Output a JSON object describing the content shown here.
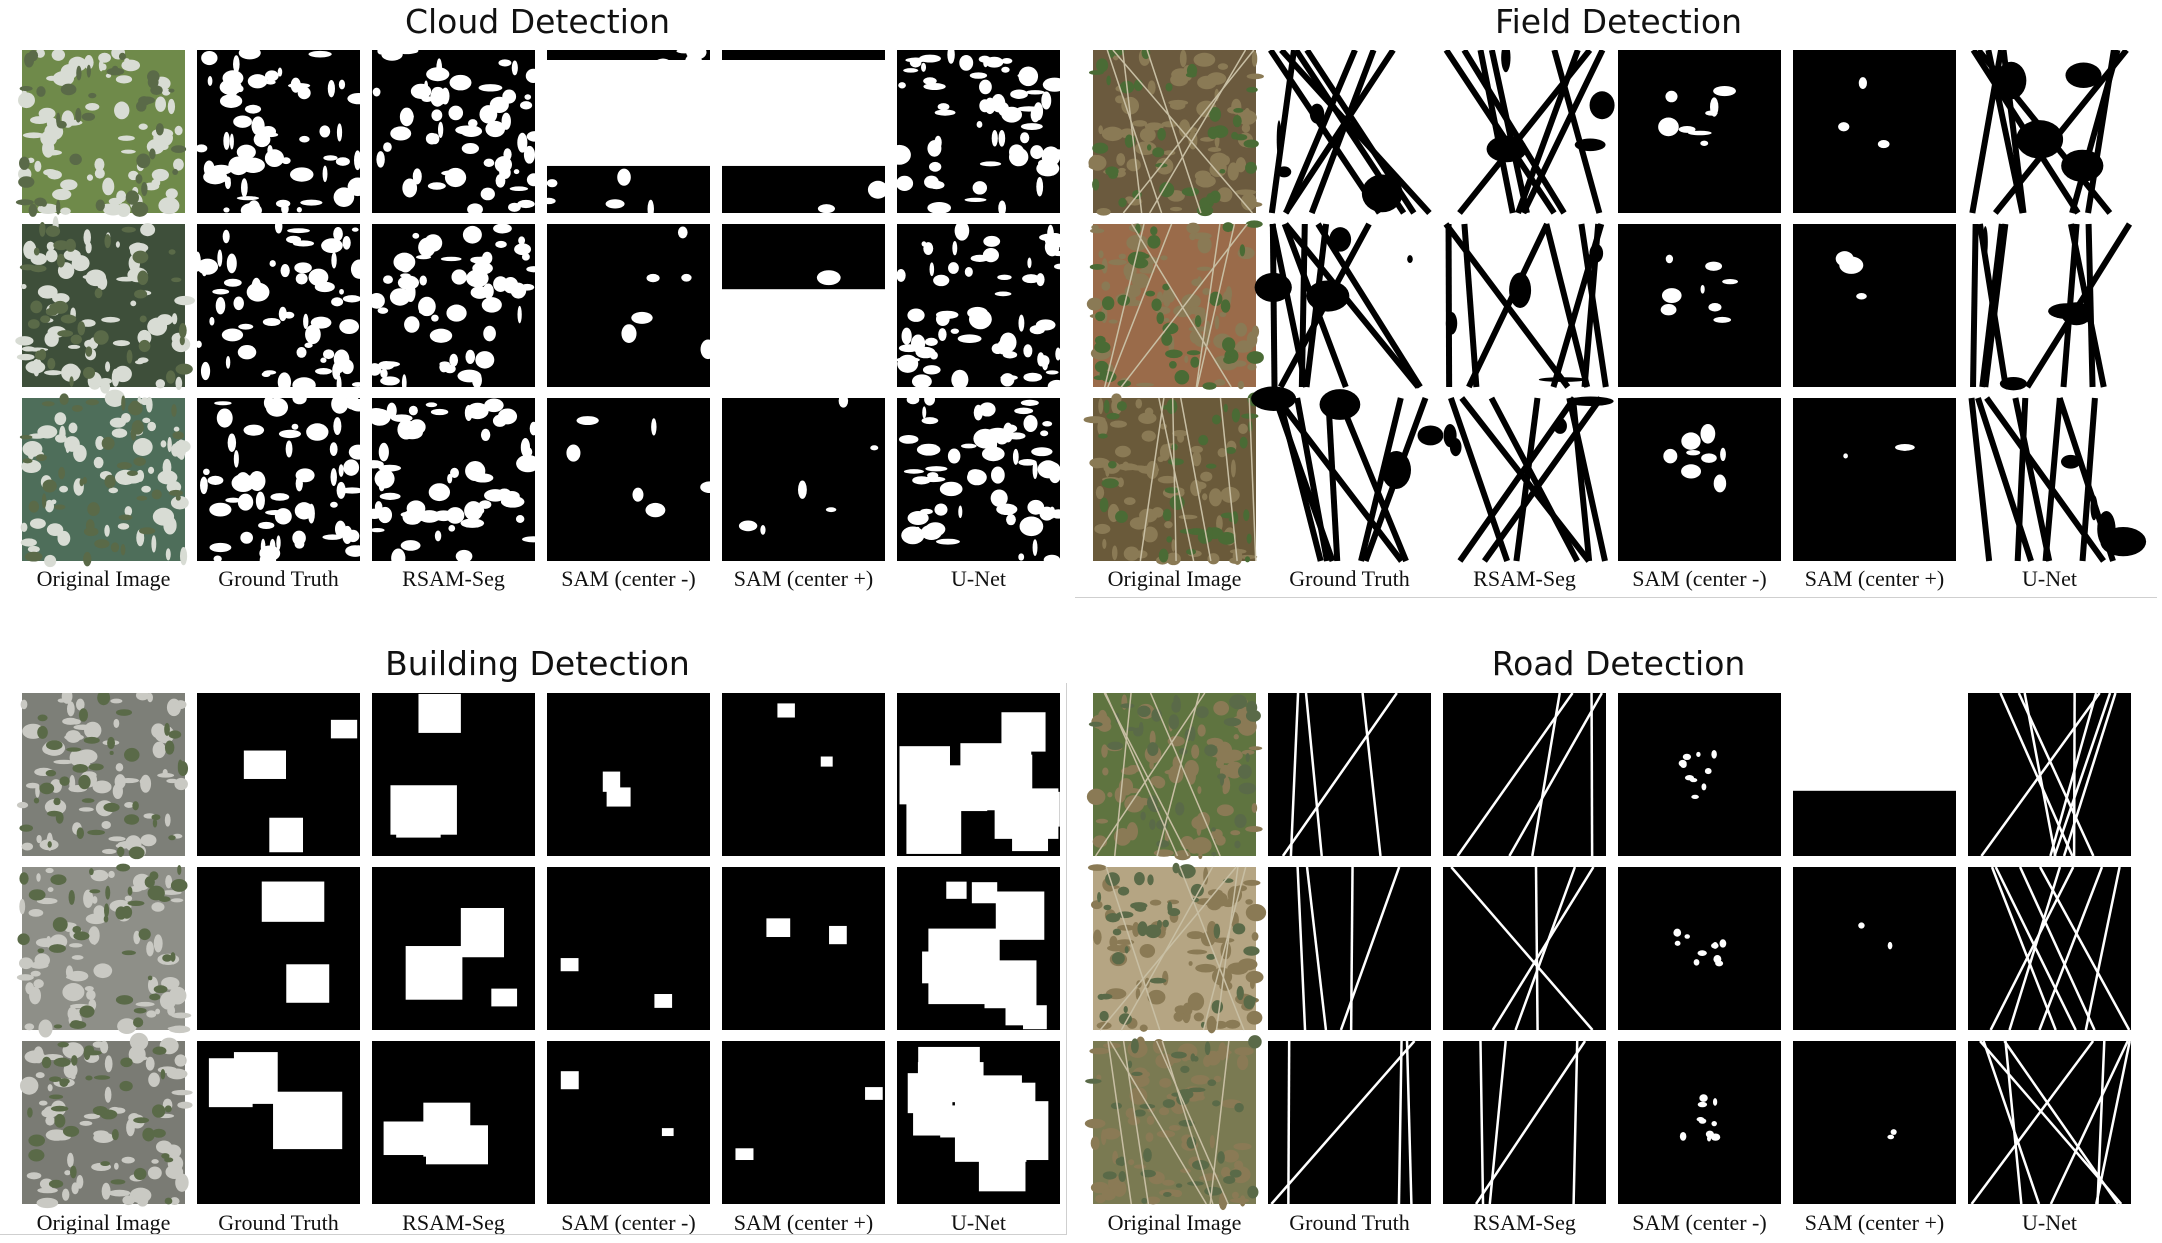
{
  "figure": {
    "panels": [
      {
        "id": "cloud",
        "title": "Cloud Detection",
        "column_labels": [
          "Original Image",
          "Ground Truth",
          "RSAM-Seg",
          "SAM (center -)",
          "SAM (center +)",
          "U-Net"
        ],
        "rows": 3,
        "photo_colors": [
          "#6f8a4a",
          "#3e4f3a",
          "#4e6e5a"
        ]
      },
      {
        "id": "field",
        "title": "Field Detection",
        "column_labels": [
          "Original Image",
          "Ground Truth",
          "RSAM-Seg",
          "SAM (center -)",
          "SAM (center +)",
          "U-Net"
        ],
        "rows": 3,
        "photo_colors": [
          "#6b5a3e",
          "#9a6b4a",
          "#6a5a3a"
        ]
      },
      {
        "id": "building",
        "title": "Building Detection",
        "column_labels": [
          "Original Image",
          "Ground Truth",
          "RSAM-Seg",
          "SAM (center -)",
          "SAM (center +)",
          "U-Net"
        ],
        "rows": 3,
        "photo_colors": [
          "#7d7f78",
          "#8e8f88",
          "#7a7b74"
        ]
      },
      {
        "id": "road",
        "title": "Road Detection",
        "column_labels": [
          "Original Image",
          "Ground Truth",
          "RSAM-Seg",
          "SAM (center -)",
          "SAM (center +)",
          "U-Net"
        ],
        "rows": 3,
        "photo_colors": [
          "#5f7440",
          "#b5a583",
          "#7a7a52"
        ]
      }
    ]
  }
}
